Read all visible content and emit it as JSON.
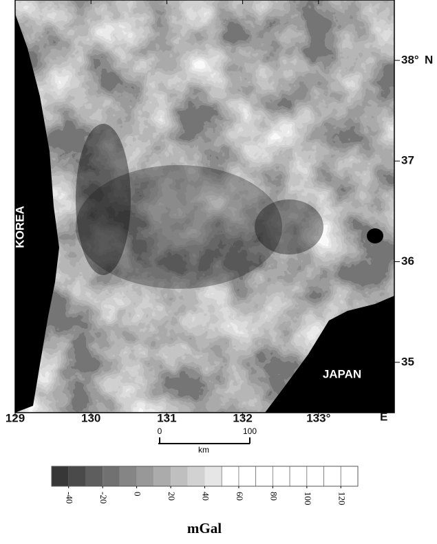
{
  "map": {
    "labels": [
      "KOREA",
      "JAPAN"
    ],
    "xlim": [
      129,
      134
    ],
    "ylim": [
      34.5,
      38.6
    ],
    "xticks": [
      129,
      130,
      131,
      132,
      {
        "value": 133,
        "label": "133°"
      }
    ],
    "x_unit": "E",
    "yticks": [
      35,
      36,
      37,
      {
        "value": 38,
        "label": "38°"
      }
    ],
    "y_unit": "N"
  },
  "scale_bar": {
    "ticks": [
      0,
      100
    ],
    "unit": "km"
  },
  "colorbar": {
    "clim": [
      -50,
      130
    ],
    "ticks": [
      -40,
      -20,
      0,
      20,
      40,
      60,
      80,
      100,
      120
    ],
    "label": "mGal"
  }
}
